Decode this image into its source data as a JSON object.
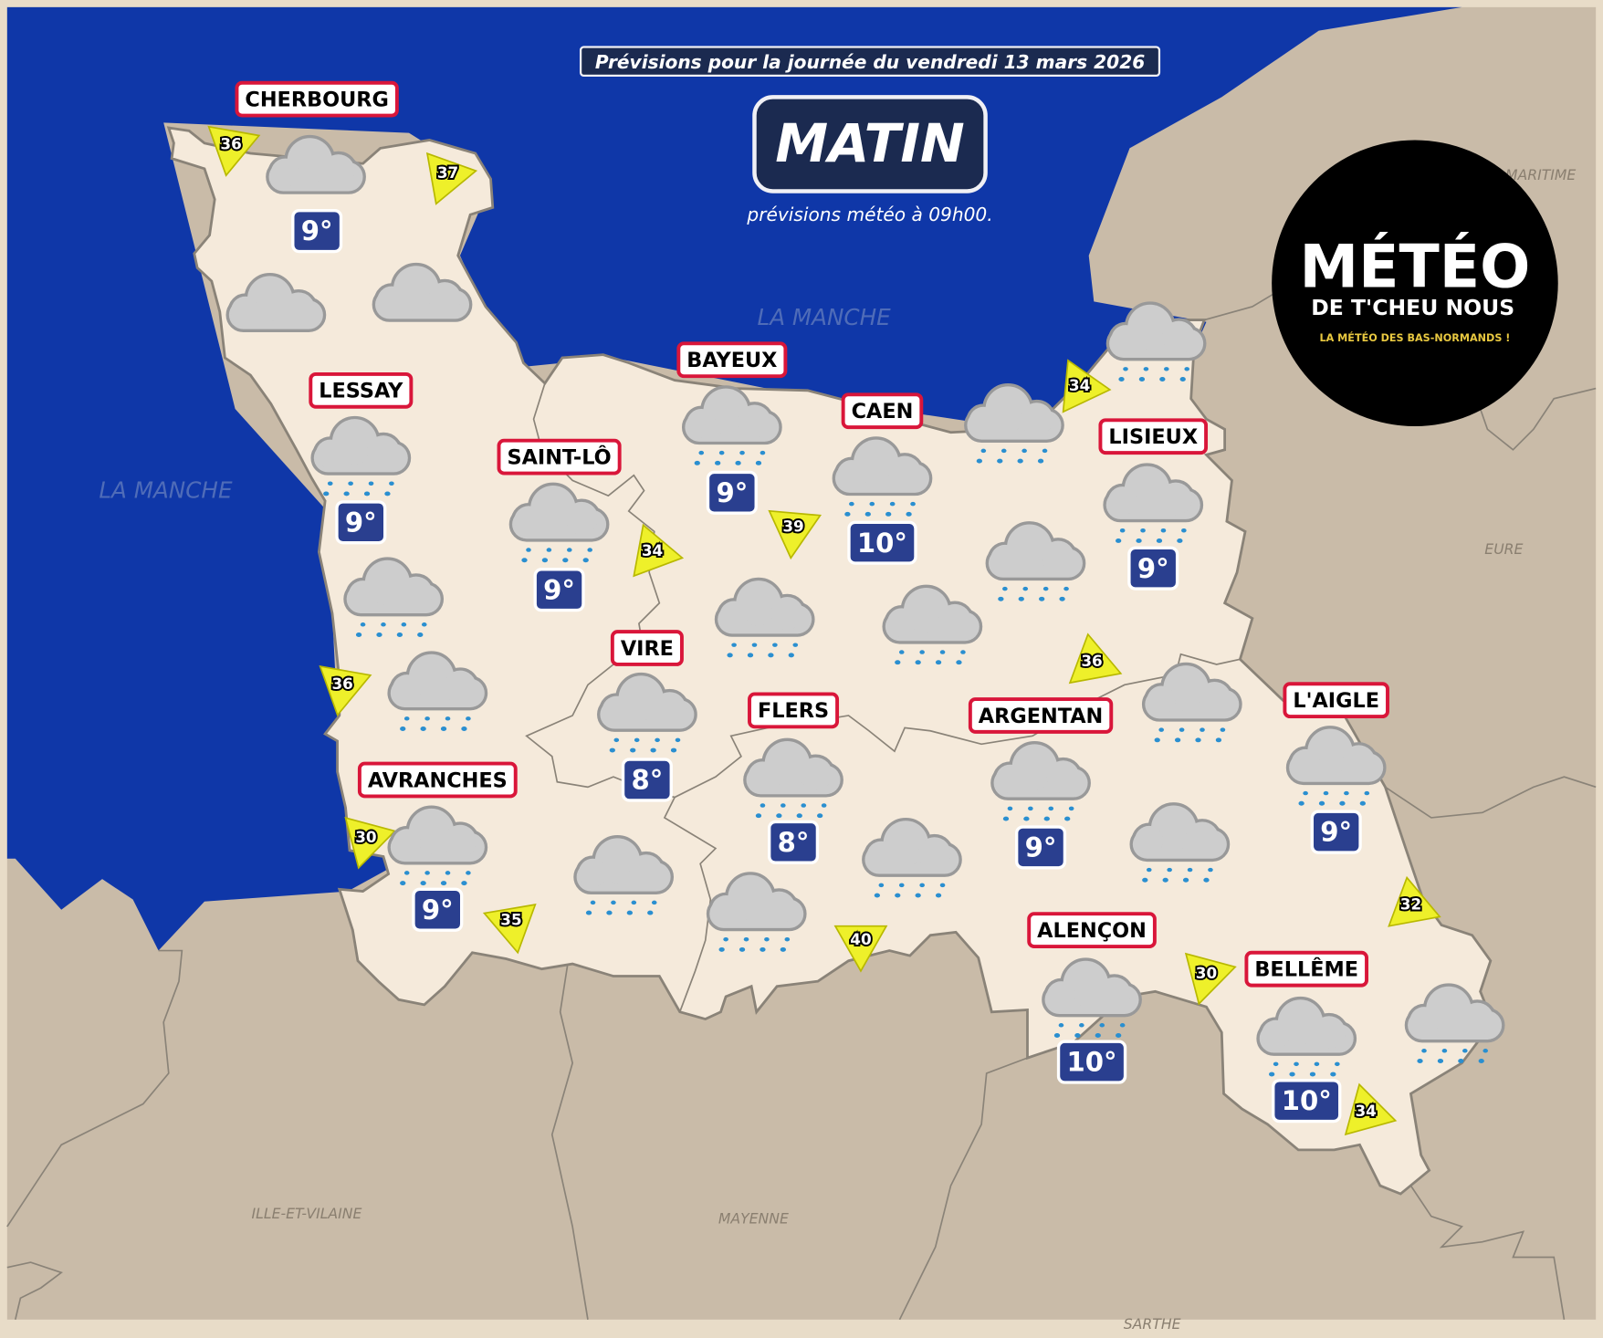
{
  "header": {
    "date_banner": "Prévisions pour la journée du vendredi 13 mars 2026",
    "period": "MATIN",
    "subtitle": "prévisions météo à 09h00."
  },
  "logo": {
    "title": "MÉTÉO",
    "line2": "DE T'CHEU NOUS",
    "tagline": "LA MÉTÉO DES BAS-NORMANDS !"
  },
  "sea_labels": [
    "LA MANCHE",
    "LA MANCHE"
  ],
  "department_labels": [
    "MARITIME",
    "EURE",
    "ILLE-ET-VILAINE",
    "MAYENNE",
    "SARTHE"
  ],
  "cities": [
    {
      "name": "CHERBOURG",
      "temp": "9°",
      "weather": "cloud-icon"
    },
    {
      "name": "LESSAY",
      "temp": "9°",
      "weather": "rain-cloud-icon"
    },
    {
      "name": "SAINT-LÔ",
      "temp": "9°",
      "weather": "rain-cloud-icon"
    },
    {
      "name": "BAYEUX",
      "temp": "9°",
      "weather": "rain-cloud-icon"
    },
    {
      "name": "CAEN",
      "temp": "10°",
      "weather": "rain-cloud-icon"
    },
    {
      "name": "LISIEUX",
      "temp": "9°",
      "weather": "rain-cloud-icon"
    },
    {
      "name": "VIRE",
      "temp": "8°",
      "weather": "rain-cloud-icon"
    },
    {
      "name": "FLERS",
      "temp": "8°",
      "weather": "rain-cloud-icon"
    },
    {
      "name": "ARGENTAN",
      "temp": "9°",
      "weather": "rain-cloud-icon"
    },
    {
      "name": "L'AIGLE",
      "temp": "9°",
      "weather": "rain-cloud-icon"
    },
    {
      "name": "AVRANCHES",
      "temp": "9°",
      "weather": "rain-cloud-icon"
    },
    {
      "name": "ALENÇON",
      "temp": "10°",
      "weather": "rain-cloud-icon"
    },
    {
      "name": "BELLÊME",
      "temp": "10°",
      "weather": "rain-cloud-icon"
    }
  ],
  "extra_weather_icons": [
    "cloud-icon",
    "cloud-icon",
    "rain-cloud-icon",
    "rain-cloud-icon",
    "rain-cloud-icon",
    "rain-cloud-icon",
    "rain-cloud-icon",
    "rain-cloud-icon",
    "rain-cloud-icon",
    "rain-cloud-icon",
    "rain-cloud-icon",
    "rain-cloud-icon",
    "rain-cloud-icon",
    "rain-cloud-icon",
    "rain-cloud-icon"
  ],
  "wind_gusts_kmh": [
    36,
    37,
    34,
    39,
    34,
    36,
    36,
    30,
    35,
    40,
    30,
    32,
    34
  ],
  "colors": {
    "sea": "#0f37a8",
    "land": "#c9bba8",
    "region": "#f5eadb",
    "city_border": "#d9163a",
    "temp_box": "#2a3f8f",
    "wind_arrow": "#eef02a",
    "header_box": "#1b2a50",
    "rain": "#2a8fd0"
  }
}
